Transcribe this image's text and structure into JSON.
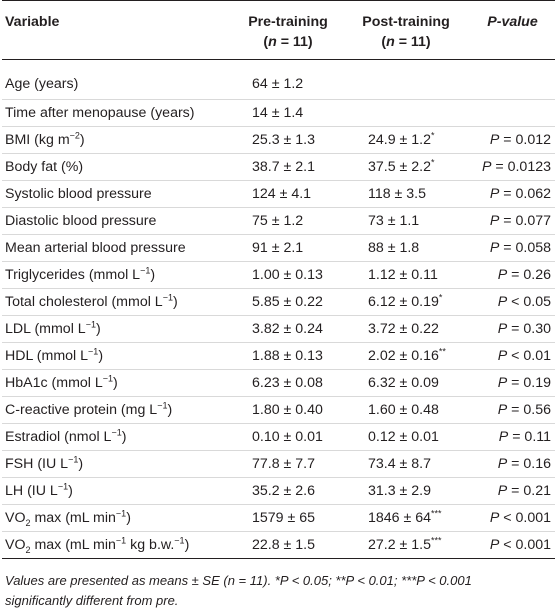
{
  "table": {
    "headers": {
      "variable": "Variable",
      "pre_line1": "Pre-training",
      "pre_line2": "(n = 11)",
      "post_line1": "Post-training",
      "post_line2": "(n = 11)",
      "pvalue": "P-value"
    },
    "rows": [
      {
        "variable": "Age (years)",
        "pre": "64 ± 1.2",
        "post": "",
        "p": ""
      },
      {
        "variable": "Time after menopause (years)",
        "pre": "14 ± 1.4",
        "post": "",
        "p": ""
      },
      {
        "variable": "BMI (kg m−2)",
        "pre": "25.3 ± 1.3",
        "post": "24.9 ± 1.2*",
        "p": "P = 0.012"
      },
      {
        "variable": "Body fat (%)",
        "pre": "38.7 ± 2.1",
        "post": "37.5 ± 2.2*",
        "p": "P = 0.0123"
      },
      {
        "variable": "Systolic blood pressure",
        "pre": "124 ± 4.1",
        "post": "118 ± 3.5",
        "p": "P = 0.062"
      },
      {
        "variable": "Diastolic blood pressure",
        "pre": "75 ± 1.2",
        "post": "73 ± 1.1",
        "p": "P = 0.077"
      },
      {
        "variable": "Mean arterial blood pressure",
        "pre": "91 ± 2.1",
        "post": "88 ± 1.8",
        "p": "P = 0.058"
      },
      {
        "variable": "Triglycerides (mmol L−1)",
        "pre": "1.00 ± 0.13",
        "post": "1.12 ± 0.11",
        "p": "P = 0.26"
      },
      {
        "variable": "Total cholesterol (mmol L−1)",
        "pre": "5.85 ± 0.22",
        "post": "6.12 ± 0.19*",
        "p": "P < 0.05"
      },
      {
        "variable": "LDL (mmol L−1)",
        "pre": "3.82 ± 0.24",
        "post": "3.72 ± 0.22",
        "p": "P = 0.30"
      },
      {
        "variable": "HDL (mmol L−1)",
        "pre": "1.88 ± 0.13",
        "post": "2.02 ± 0.16**",
        "p": "P < 0.01"
      },
      {
        "variable": "HbA1c (mmol L−1)",
        "pre": "6.23 ± 0.08",
        "post": "6.32 ± 0.09",
        "p": "P = 0.19"
      },
      {
        "variable": "C-reactive protein (mg L−1)",
        "pre": "1.80 ± 0.40",
        "post": "1.60 ± 0.48",
        "p": "P = 0.56"
      },
      {
        "variable": "Estradiol (nmol L−1)",
        "pre": "0.10 ± 0.01",
        "post": "0.12 ± 0.01",
        "p": "P = 0.11"
      },
      {
        "variable": "FSH (IU L−1)",
        "pre": "77.8 ± 7.7",
        "post": "73.4 ± 8.7",
        "p": "P = 0.16"
      },
      {
        "variable": "LH (IU L−1)",
        "pre": "35.2 ± 2.6",
        "post": "31.3 ± 2.9",
        "p": "P = 0.21"
      },
      {
        "variable": "VO2 max (mL min−1)",
        "pre": "1579 ± 65",
        "post": "1846 ± 64***",
        "p": "P < 0.001"
      },
      {
        "variable": "VO2 max (mL min−1 kg b.w.−1)",
        "pre": "22.8 ± 1.5",
        "post": "27.2 ± 1.5***",
        "p": "P < 0.001"
      }
    ],
    "footnote_line1": "Values are presented as means ± SE (n = 11). *P < 0.05; **P < 0.01; ***P < 0.001",
    "footnote_line2": "significantly different from pre."
  }
}
